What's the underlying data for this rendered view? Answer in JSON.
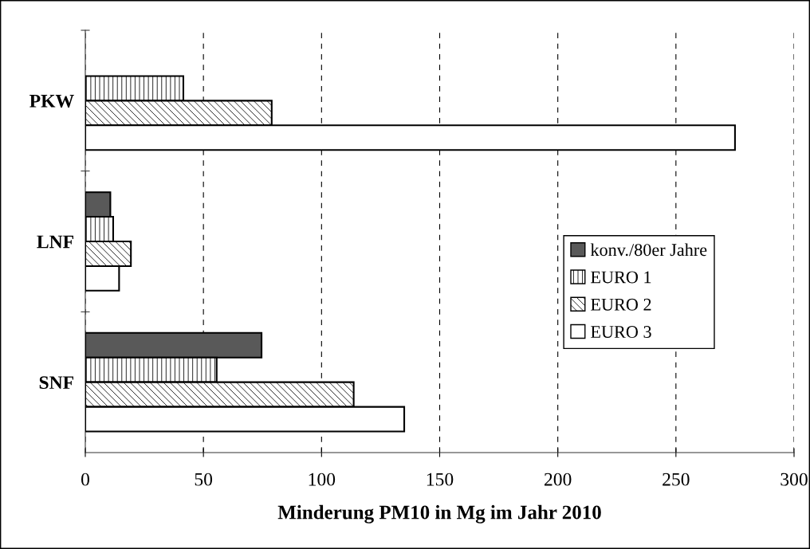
{
  "chart_data": {
    "type": "bar",
    "orientation": "horizontal",
    "xlabel": "Minderung PM10 in Mg im Jahr 2010",
    "categories": [
      "PKW",
      "LNF",
      "SNF"
    ],
    "series": [
      {
        "name": "konv./80er Jahre",
        "color": "#595959",
        "values": [
          null,
          10.6,
          74.6
        ]
      },
      {
        "name": "EURO 1",
        "color": "#000000",
        "values": [
          41.5,
          11.8,
          55.6
        ]
      },
      {
        "name": "EURO 2",
        "color": "#000000",
        "values": [
          78.9,
          19.3,
          113.6
        ]
      },
      {
        "name": "EURO 3",
        "color": "#ffffff",
        "values": [
          275,
          14.3,
          135
        ]
      }
    ],
    "xlim": [
      0,
      300
    ],
    "xticks": [
      0,
      50,
      100,
      150,
      200,
      250,
      300
    ],
    "grid": "x",
    "legend": "right"
  }
}
